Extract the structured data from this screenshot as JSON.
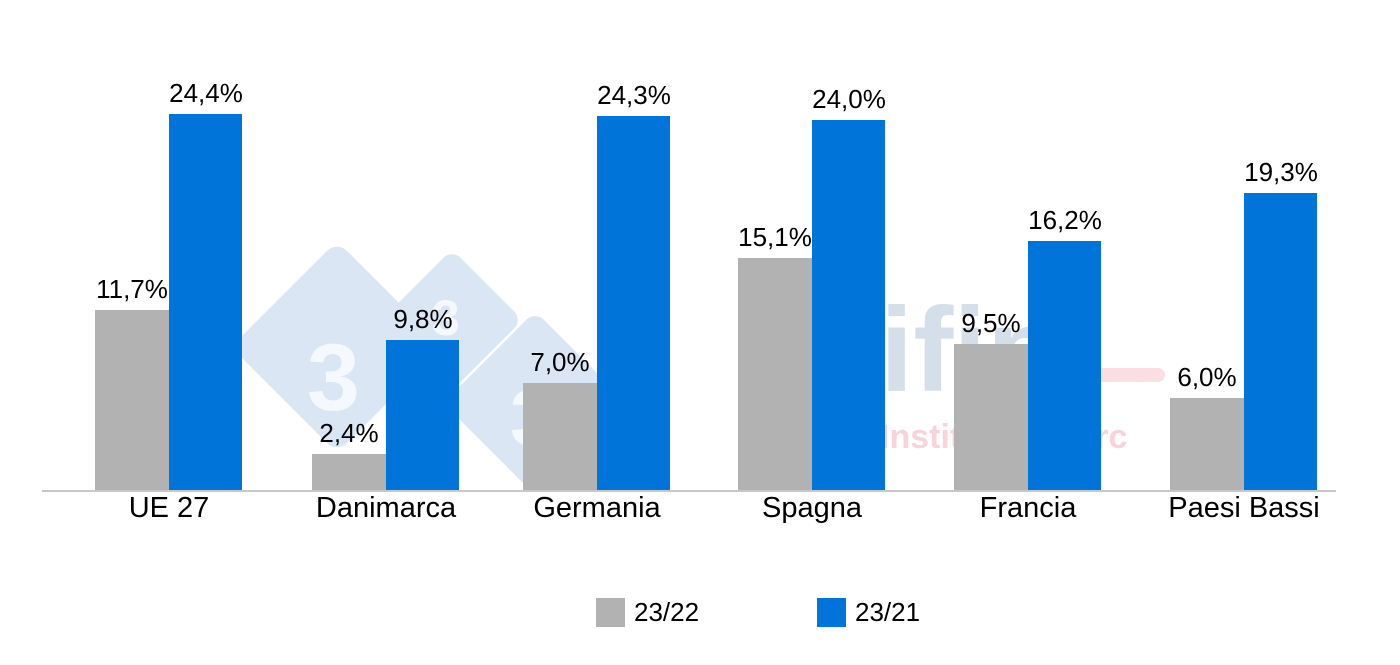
{
  "chart_data": {
    "type": "bar",
    "title": "",
    "xlabel": "",
    "ylabel": "",
    "categories": [
      "UE 27",
      "Danimarca",
      "Germania",
      "Spagna",
      "Francia",
      "Paesi Bassi"
    ],
    "series": [
      {
        "name": "23/22",
        "color": "#b2b2b2",
        "values": [
          11.7,
          2.4,
          7.0,
          15.1,
          9.5,
          6.0
        ],
        "labels": [
          "11,7%",
          "2,4%",
          "7,0%",
          "15,1%",
          "9,5%",
          "6,0%"
        ]
      },
      {
        "name": "23/21",
        "color": "#0074d9",
        "values": [
          24.4,
          9.8,
          24.3,
          24.0,
          16.2,
          19.3
        ],
        "labels": [
          "24,4%",
          "9,8%",
          "24,3%",
          "24,0%",
          "16,2%",
          "19,3%"
        ]
      }
    ],
    "ylim": [
      0,
      26
    ],
    "grid": false,
    "y_axis_visible": false,
    "data_labels": true,
    "legend_position": "bottom"
  },
  "watermarks": {
    "logo_3tres3": "3",
    "ifip_text": "ifip",
    "ifip_subtitle": "Institut du porc"
  }
}
